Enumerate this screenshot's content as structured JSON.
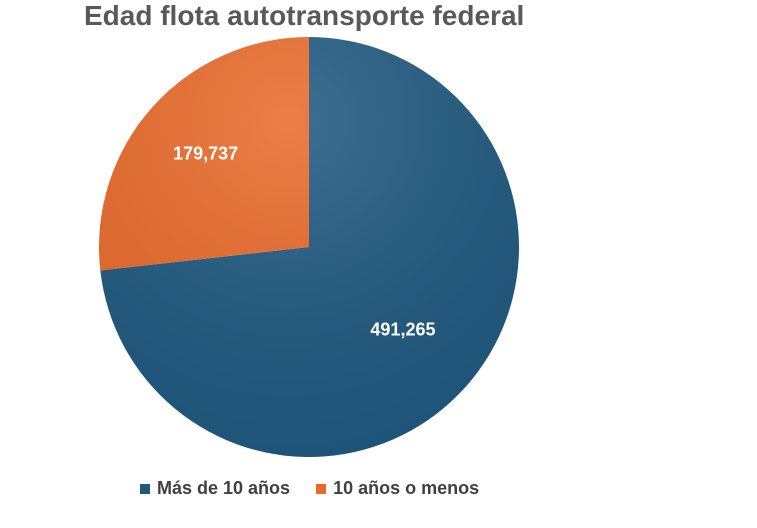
{
  "chart_data": {
    "type": "pie",
    "title": "Edad flota autotransporte federal",
    "categories": [
      "Más de 10 años",
      "10 años o menos"
    ],
    "values": [
      491265,
      179737
    ],
    "data_labels": [
      "491,265",
      "179,737"
    ],
    "colors": [
      "#1F5980",
      "#E86A2A"
    ],
    "legend_position": "bottom"
  }
}
